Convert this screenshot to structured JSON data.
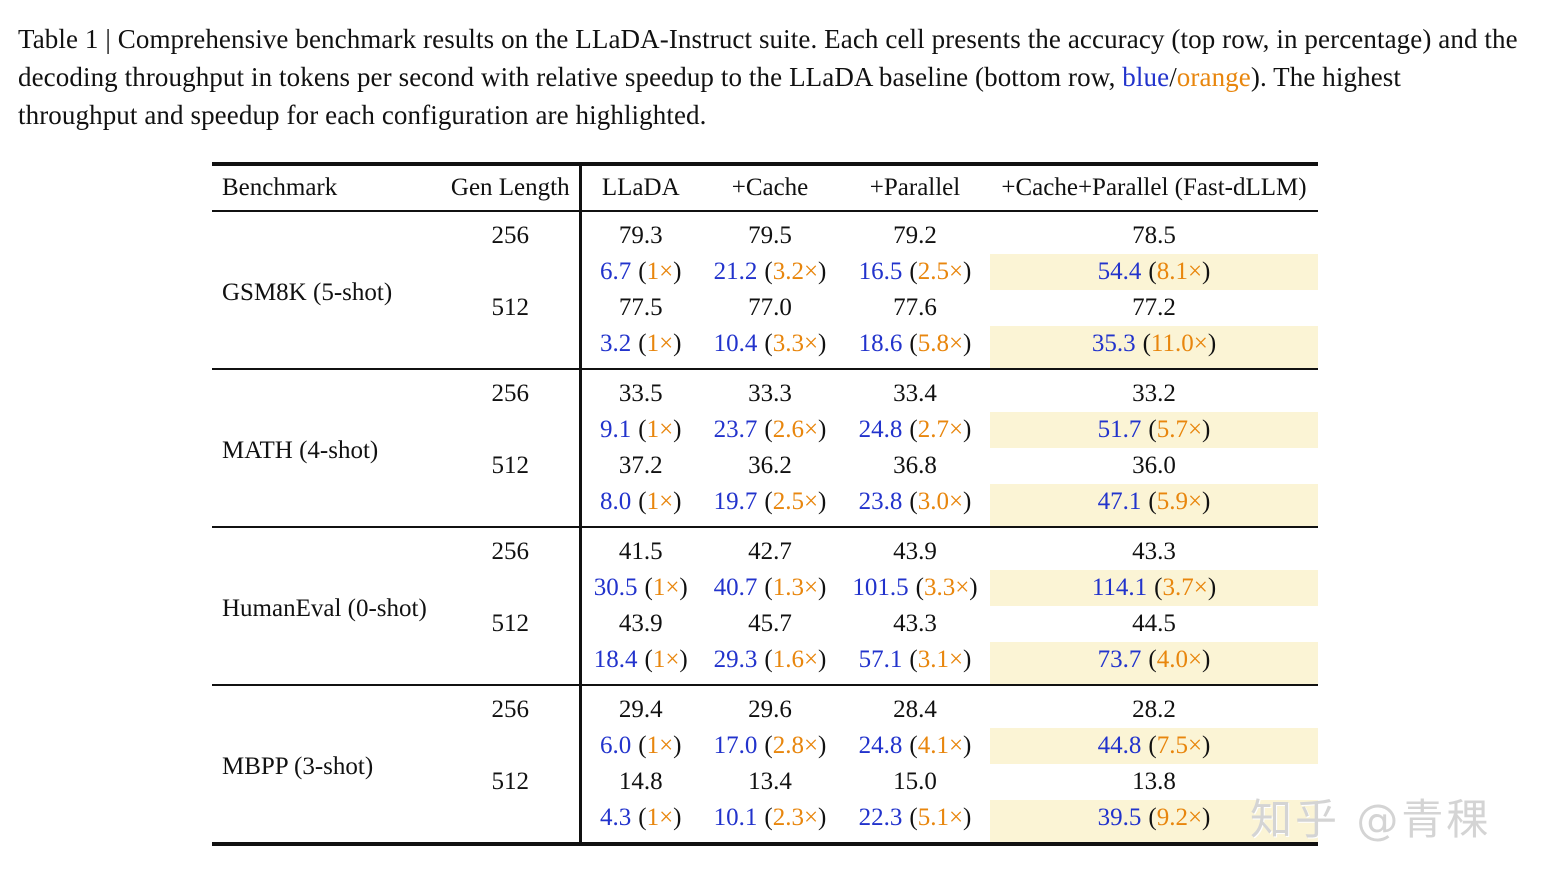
{
  "caption": {
    "prefix": "Table 1 | Comprehensive benchmark results on the LLaDA-Instruct suite. Each cell presents the accuracy (top row, in percentage) and the decoding throughput in tokens per second with relative speedup to the LLaDA baseline (bottom row, ",
    "blue_word": "blue",
    "slash": "/",
    "orange_word": "orange",
    "suffix": "). The highest throughput and speedup for each configuration are highlighted."
  },
  "colors": {
    "throughput_blue": "#2233CC",
    "speedup_orange": "#E8860D",
    "highlight_yellow": "#FBF4D5",
    "text_black": "#111111"
  },
  "fmt": {
    "open": "(",
    "close": ")"
  },
  "table": {
    "headers": [
      "Benchmark",
      "Gen Length",
      "LLaDA",
      "+Cache",
      "+Parallel",
      "+Cache+Parallel (Fast-dLLM)"
    ],
    "sections": [
      {
        "benchmark": "GSM8K (5-shot)",
        "rows": [
          {
            "gen": "256",
            "acc": [
              "79.3",
              "79.5",
              "79.2",
              "78.5"
            ],
            "tput": [
              {
                "v": "6.7",
                "s": "1×"
              },
              {
                "v": "21.2",
                "s": "3.2×"
              },
              {
                "v": "16.5",
                "s": "2.5×"
              },
              {
                "v": "54.4",
                "s": "8.1×"
              }
            ]
          },
          {
            "gen": "512",
            "acc": [
              "77.5",
              "77.0",
              "77.6",
              "77.2"
            ],
            "tput": [
              {
                "v": "3.2",
                "s": "1×"
              },
              {
                "v": "10.4",
                "s": "3.3×"
              },
              {
                "v": "18.6",
                "s": "5.8×"
              },
              {
                "v": "35.3",
                "s": "11.0×"
              }
            ]
          }
        ]
      },
      {
        "benchmark": "MATH (4-shot)",
        "rows": [
          {
            "gen": "256",
            "acc": [
              "33.5",
              "33.3",
              "33.4",
              "33.2"
            ],
            "tput": [
              {
                "v": "9.1",
                "s": "1×"
              },
              {
                "v": "23.7",
                "s": "2.6×"
              },
              {
                "v": "24.8",
                "s": "2.7×"
              },
              {
                "v": "51.7",
                "s": "5.7×"
              }
            ]
          },
          {
            "gen": "512",
            "acc": [
              "37.2",
              "36.2",
              "36.8",
              "36.0"
            ],
            "tput": [
              {
                "v": "8.0",
                "s": "1×"
              },
              {
                "v": "19.7",
                "s": "2.5×"
              },
              {
                "v": "23.8",
                "s": "3.0×"
              },
              {
                "v": "47.1",
                "s": "5.9×"
              }
            ]
          }
        ]
      },
      {
        "benchmark": "HumanEval (0-shot)",
        "rows": [
          {
            "gen": "256",
            "acc": [
              "41.5",
              "42.7",
              "43.9",
              "43.3"
            ],
            "tput": [
              {
                "v": "30.5",
                "s": "1×"
              },
              {
                "v": "40.7",
                "s": "1.3×"
              },
              {
                "v": "101.5",
                "s": "3.3×"
              },
              {
                "v": "114.1",
                "s": "3.7×"
              }
            ]
          },
          {
            "gen": "512",
            "acc": [
              "43.9",
              "45.7",
              "43.3",
              "44.5"
            ],
            "tput": [
              {
                "v": "18.4",
                "s": "1×"
              },
              {
                "v": "29.3",
                "s": "1.6×"
              },
              {
                "v": "57.1",
                "s": "3.1×"
              },
              {
                "v": "73.7",
                "s": "4.0×"
              }
            ]
          }
        ]
      },
      {
        "benchmark": "MBPP (3-shot)",
        "rows": [
          {
            "gen": "256",
            "acc": [
              "29.4",
              "29.6",
              "28.4",
              "28.2"
            ],
            "tput": [
              {
                "v": "6.0",
                "s": "1×"
              },
              {
                "v": "17.0",
                "s": "2.8×"
              },
              {
                "v": "24.8",
                "s": "4.1×"
              },
              {
                "v": "44.8",
                "s": "7.5×"
              }
            ]
          },
          {
            "gen": "512",
            "acc": [
              "14.8",
              "13.4",
              "15.0",
              "13.8"
            ],
            "tput": [
              {
                "v": "4.3",
                "s": "1×"
              },
              {
                "v": "10.1",
                "s": "2.3×"
              },
              {
                "v": "22.3",
                "s": "5.1×"
              },
              {
                "v": "39.5",
                "s": "9.2×"
              }
            ]
          }
        ]
      }
    ]
  },
  "watermark": {
    "text": "知乎 @青稞"
  }
}
